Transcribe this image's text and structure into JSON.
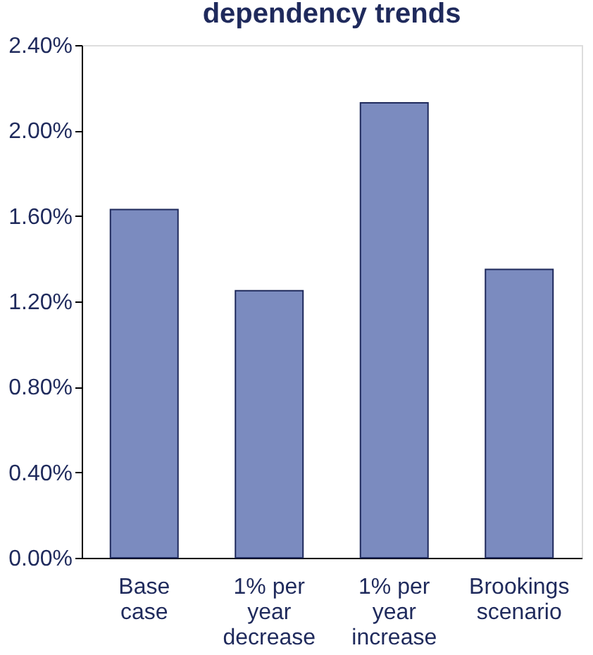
{
  "chart_data": {
    "type": "bar",
    "title": "dependency trends",
    "categories": [
      "Base case",
      "1% per year decrease",
      "1% per year increase",
      "Brookings scenario"
    ],
    "values": [
      1.63,
      1.25,
      2.13,
      1.35
    ],
    "color": "#7b8bbf",
    "ylim": [
      0,
      2.4
    ],
    "yticks": [
      {
        "value": 0,
        "label": "0.00%"
      },
      {
        "value": 0.4,
        "label": "0.40%"
      },
      {
        "value": 0.8,
        "label": "0.80%"
      },
      {
        "value": 1.2,
        "label": "1.20%"
      },
      {
        "value": 1.6,
        "label": "1.60%"
      },
      {
        "value": 2.0,
        "label": "2.00%"
      },
      {
        "value": 2.4,
        "label": "2.40%"
      }
    ],
    "grid": false
  }
}
